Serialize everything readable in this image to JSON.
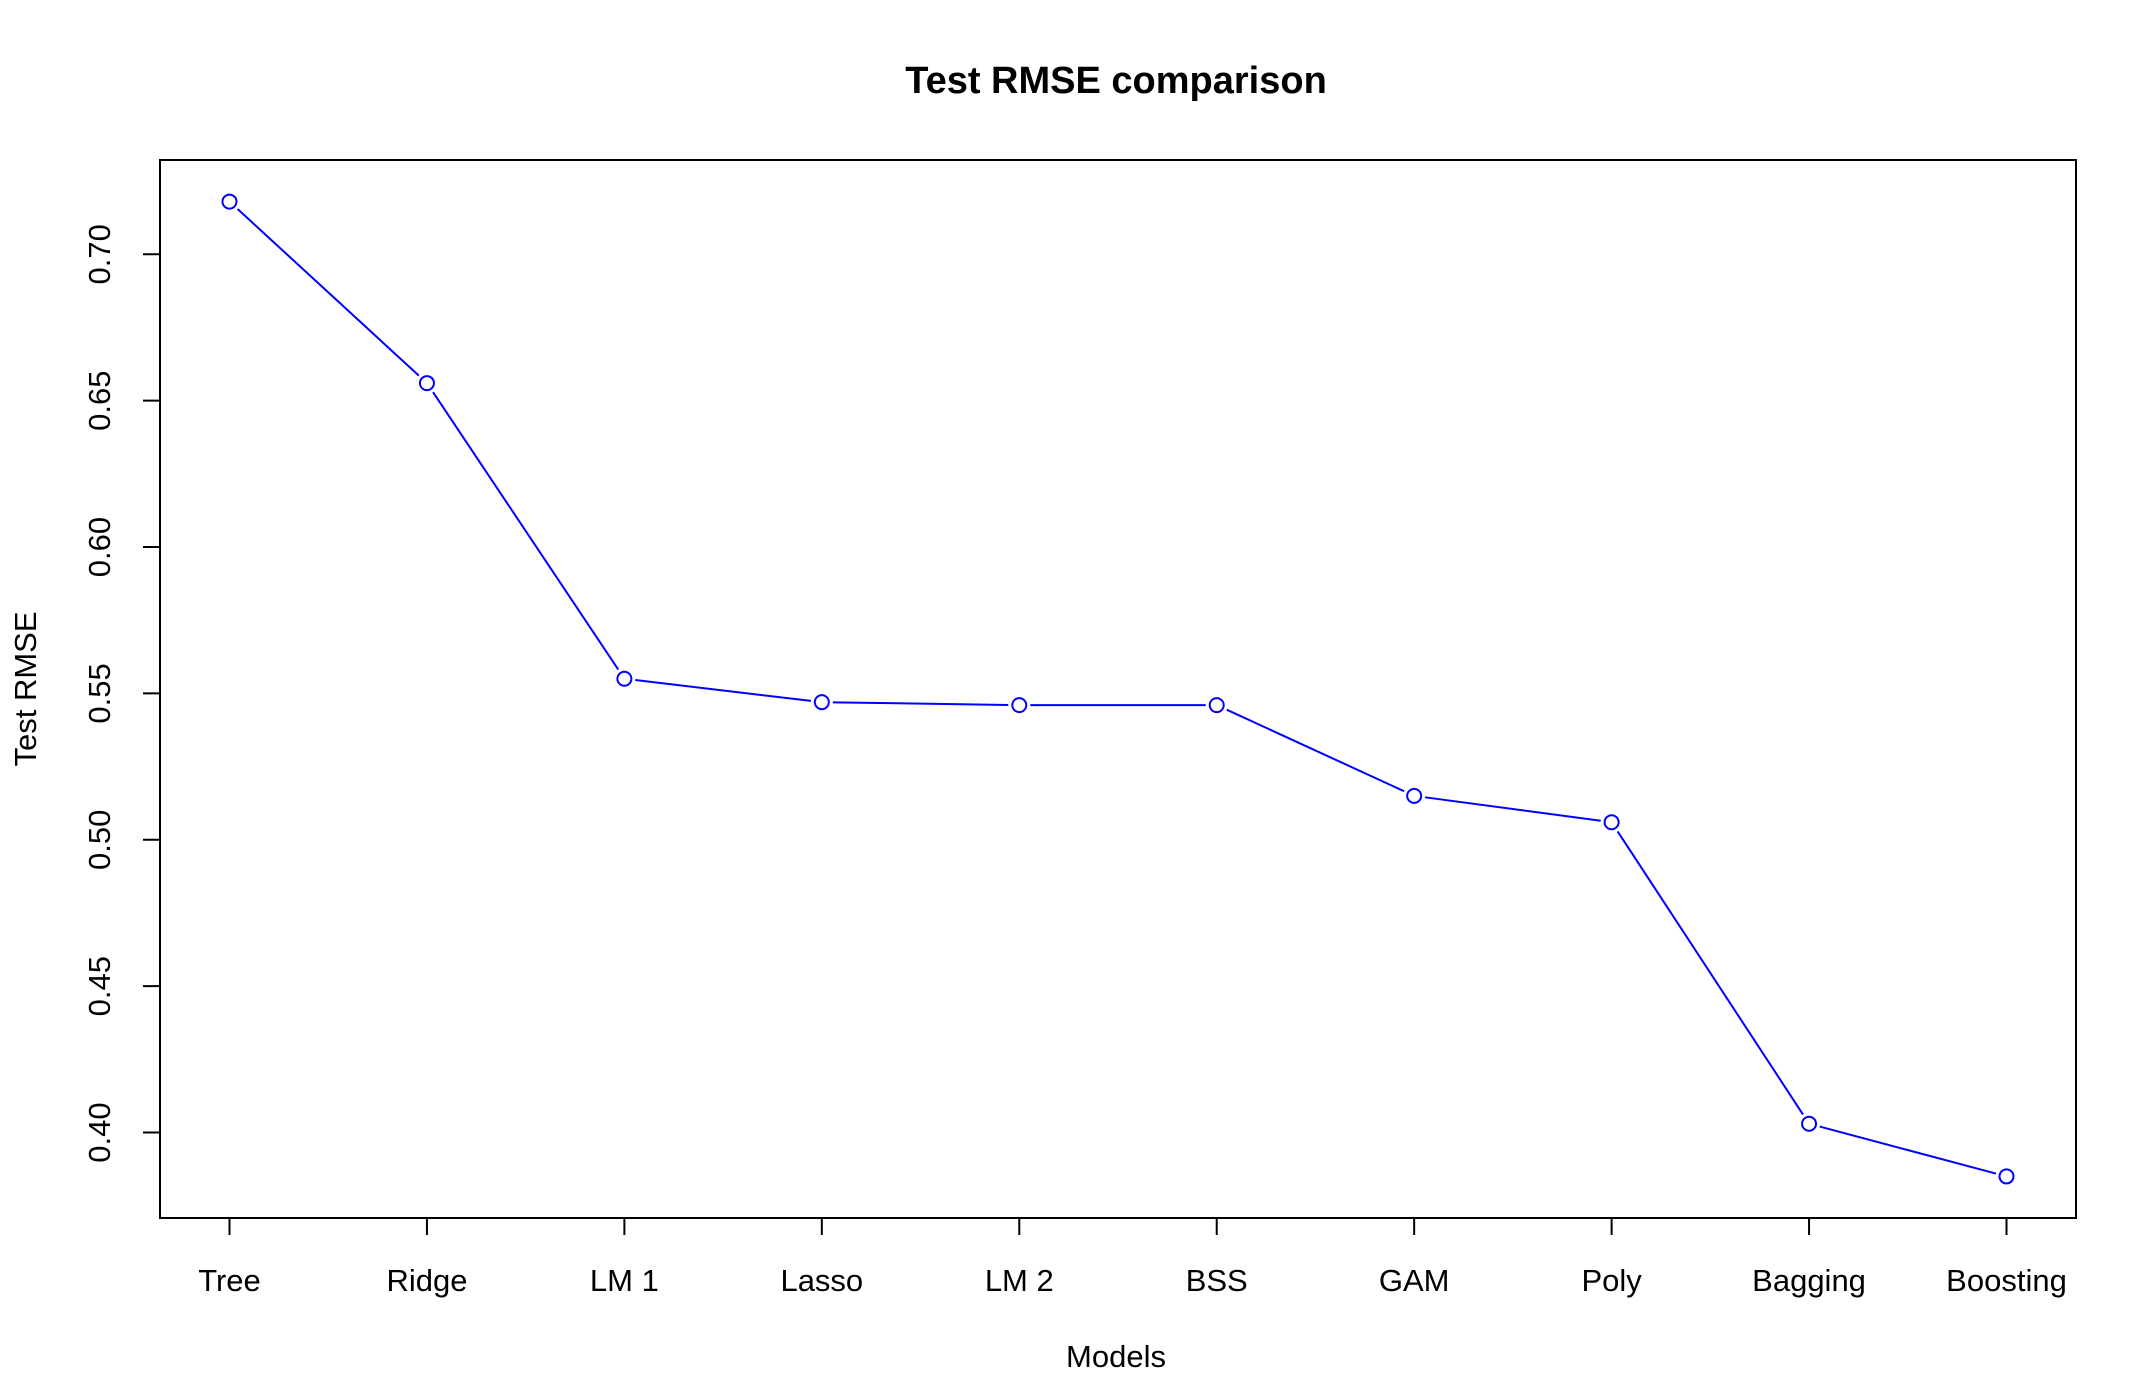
{
  "chart_data": {
    "type": "line",
    "title": "Test RMSE comparison",
    "xlabel": "Models",
    "ylabel": "Test RMSE",
    "categories": [
      "Tree",
      "Ridge",
      "LM 1",
      "Lasso",
      "LM 2",
      "BSS",
      "GAM",
      "Poly",
      "Bagging",
      "Boosting"
    ],
    "series": [
      {
        "name": "Test RMSE",
        "values": [
          0.718,
          0.656,
          0.555,
          0.547,
          0.546,
          0.546,
          0.515,
          0.506,
          0.403,
          0.385
        ],
        "color": "#0000ff",
        "marker": "open-circle"
      }
    ],
    "yticks": [
      0.4,
      0.45,
      0.5,
      0.55,
      0.6,
      0.65,
      0.7
    ],
    "ytick_labels": [
      "0.40",
      "0.45",
      "0.50",
      "0.55",
      "0.60",
      "0.65",
      "0.70"
    ],
    "ylim": [
      0.3708,
      0.7322
    ],
    "grid": false,
    "legend": "none"
  }
}
